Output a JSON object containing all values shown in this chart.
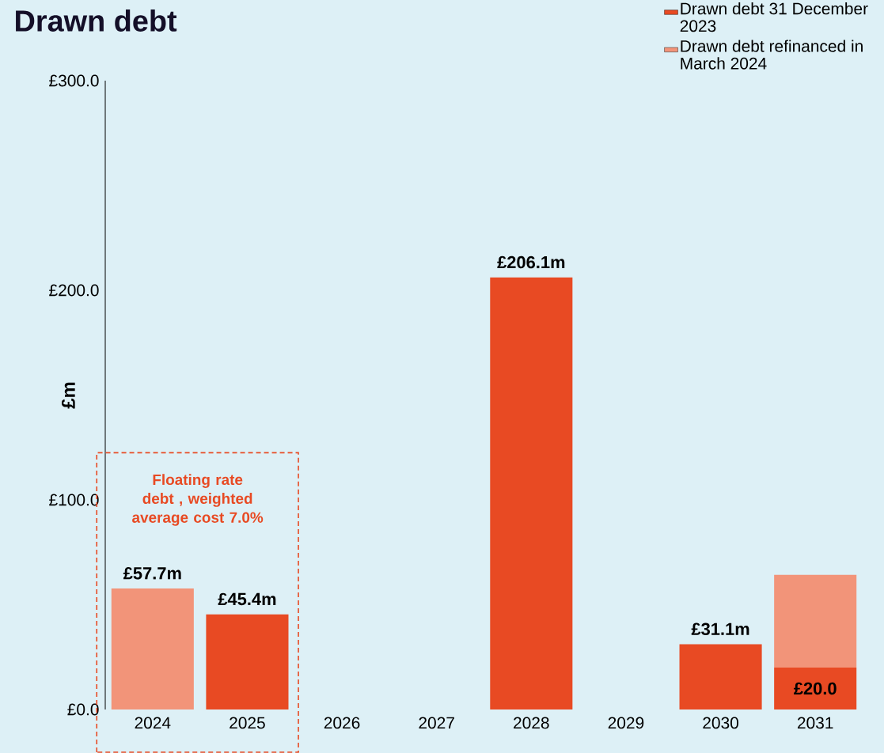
{
  "chart_data": {
    "type": "bar",
    "title": "Drawn debt",
    "ylabel": "£m",
    "stacked": true,
    "categories": [
      "2024",
      "2025",
      "2026",
      "2027",
      "2028",
      "2029",
      "2030",
      "2031"
    ],
    "series": [
      {
        "name": "Drawn debt 31 December 2023",
        "color": "#e84a23",
        "values": [
          null,
          45.4,
          null,
          null,
          206.1,
          null,
          31.1,
          20.0
        ],
        "value_labels": [
          null,
          "£45.4m",
          null,
          null,
          "£206.1m",
          null,
          "£31.1m",
          "£20.0"
        ]
      },
      {
        "name": "Drawn debt refinanced in March 2024",
        "color": "#f29479",
        "values": [
          57.7,
          null,
          null,
          null,
          null,
          null,
          null,
          44.2
        ],
        "value_labels": [
          "£57.7m",
          null,
          null,
          null,
          null,
          null,
          null,
          null
        ]
      }
    ],
    "ylim": [
      0,
      300
    ],
    "yticks": [
      {
        "value": 0,
        "label": "£0.0"
      },
      {
        "value": 100,
        "label": "£100.0"
      },
      {
        "value": 200,
        "label": "£200.0"
      },
      {
        "value": 300,
        "label": "£300.0"
      }
    ],
    "grid": false,
    "legend": "top right",
    "annotations": [
      "Floating rate debt , weighted average cost 7.0%"
    ]
  }
}
